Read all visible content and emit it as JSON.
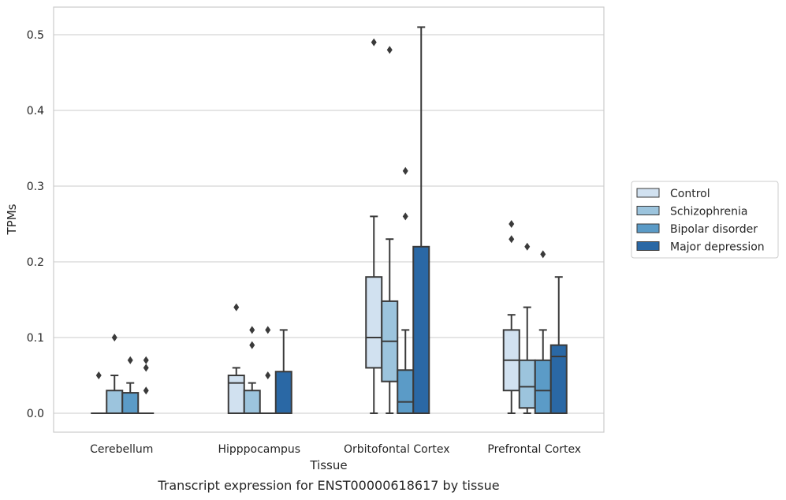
{
  "chart_data": {
    "type": "boxplot",
    "title": "",
    "xlabel": "Tissue",
    "ylabel": "TPMs",
    "ylim": [
      -0.025,
      0.537
    ],
    "yticks": [
      0.0,
      0.1,
      0.2,
      0.3,
      0.4,
      0.5
    ],
    "ytick_labels": [
      "0.0",
      "0.1",
      "0.2",
      "0.3",
      "0.4",
      "0.5"
    ],
    "grid": "horizontal",
    "legend_position": "right",
    "categories": [
      "Cerebellum",
      "Hipppocampus",
      "Orbitofontal Cortex",
      "Prefrontal Cortex"
    ],
    "series": [
      {
        "name": "Control",
        "color": "#d1e1f0",
        "boxes": [
          {
            "whislo": 0.0,
            "q1": 0.0,
            "med": 0.0,
            "q3": 0.0,
            "whishi": 0.0,
            "fliers": [
              0.05
            ]
          },
          {
            "whislo": 0.0,
            "q1": 0.0,
            "med": 0.04,
            "q3": 0.05,
            "whishi": 0.06,
            "fliers": [
              0.14
            ]
          },
          {
            "whislo": 0.0,
            "q1": 0.06,
            "med": 0.1,
            "q3": 0.18,
            "whishi": 0.26,
            "fliers": [
              0.49
            ]
          },
          {
            "whislo": 0.0,
            "q1": 0.03,
            "med": 0.07,
            "q3": 0.11,
            "whishi": 0.13,
            "fliers": [
              0.23,
              0.25
            ]
          }
        ]
      },
      {
        "name": "Schizophrenia",
        "color": "#9cc4dd",
        "boxes": [
          {
            "whislo": 0.0,
            "q1": 0.0,
            "med": 0.0,
            "q3": 0.03,
            "whishi": 0.05,
            "fliers": [
              0.1
            ]
          },
          {
            "whislo": 0.0,
            "q1": 0.0,
            "med": 0.0,
            "q3": 0.03,
            "whishi": 0.04,
            "fliers": [
              0.09,
              0.11
            ]
          },
          {
            "whislo": 0.0,
            "q1": 0.042,
            "med": 0.095,
            "q3": 0.148,
            "whishi": 0.23,
            "fliers": [
              0.48
            ]
          },
          {
            "whislo": 0.0,
            "q1": 0.007,
            "med": 0.035,
            "q3": 0.07,
            "whishi": 0.14,
            "fliers": [
              0.22
            ]
          }
        ]
      },
      {
        "name": "Bipolar disorder",
        "color": "#5b9bc7",
        "boxes": [
          {
            "whislo": 0.0,
            "q1": 0.0,
            "med": 0.0,
            "q3": 0.027,
            "whishi": 0.04,
            "fliers": [
              0.07
            ]
          },
          {
            "whislo": 0.0,
            "q1": 0.0,
            "med": 0.0,
            "q3": 0.0,
            "whishi": 0.0,
            "fliers": [
              0.05,
              0.11
            ]
          },
          {
            "whislo": 0.0,
            "q1": 0.0,
            "med": 0.015,
            "q3": 0.057,
            "whishi": 0.11,
            "fliers": [
              0.26,
              0.32
            ]
          },
          {
            "whislo": 0.0,
            "q1": 0.0,
            "med": 0.03,
            "q3": 0.07,
            "whishi": 0.11,
            "fliers": [
              0.21
            ]
          }
        ]
      },
      {
        "name": "Major depression",
        "color": "#2a68a5",
        "boxes": [
          {
            "whislo": 0.0,
            "q1": 0.0,
            "med": 0.0,
            "q3": 0.0,
            "whishi": 0.0,
            "fliers": [
              0.03,
              0.06,
              0.07
            ]
          },
          {
            "whislo": 0.0,
            "q1": 0.0,
            "med": 0.0,
            "q3": 0.055,
            "whishi": 0.11,
            "fliers": []
          },
          {
            "whislo": 0.0,
            "q1": 0.0,
            "med": 0.0,
            "q3": 0.22,
            "whishi": 0.51,
            "fliers": []
          },
          {
            "whislo": 0.0,
            "q1": 0.0,
            "med": 0.075,
            "q3": 0.09,
            "whishi": 0.18,
            "fliers": []
          }
        ]
      }
    ]
  },
  "caption": "Transcript expression for ENST00000618617 by tissue"
}
